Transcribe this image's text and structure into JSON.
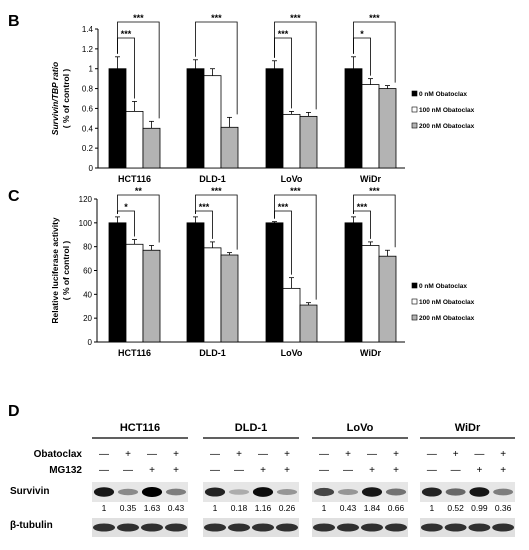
{
  "panels": {
    "B": "B",
    "C": "C",
    "D": "D"
  },
  "legend": [
    "0 nM Obatoclax",
    "100 nM Obatoclax",
    "200 nM Obatoclax"
  ],
  "colors": {
    "s0": "#000000",
    "s1": "#ffffff",
    "s2": "#b3b3b3"
  },
  "chart_data": [
    {
      "type": "bar",
      "panel": "B",
      "categories": [
        "HCT116",
        "DLD-1",
        "LoVo",
        "WiDr"
      ],
      "series": [
        {
          "name": "0 nM Obatoclax",
          "values": [
            1.0,
            1.0,
            1.0,
            1.0
          ],
          "errors": [
            0.12,
            0.09,
            0.08,
            0.12
          ]
        },
        {
          "name": "100 nM Obatoclax",
          "values": [
            0.57,
            0.93,
            0.54,
            0.84
          ],
          "errors": [
            0.1,
            0.07,
            0.03,
            0.06
          ]
        },
        {
          "name": "200 nM Obatoclax",
          "values": [
            0.4,
            0.41,
            0.52,
            0.8
          ],
          "errors": [
            0.07,
            0.1,
            0.04,
            0.03
          ]
        }
      ],
      "ylabel_line1": "Survivin/TBP ratio",
      "ylabel_line2": "( % of control )",
      "ylim": [
        0,
        1.4
      ],
      "yticks": [
        "0",
        "0.2",
        "0.4",
        "0.6",
        "0.8",
        "1",
        "1.2",
        "1.4"
      ],
      "significance": [
        {
          "group": "HCT116",
          "compare": "0 vs 100",
          "label": "***"
        },
        {
          "group": "HCT116",
          "compare": "0 vs 200",
          "label": "***"
        },
        {
          "group": "DLD-1",
          "compare": "0 vs 200",
          "label": "***"
        },
        {
          "group": "LoVo",
          "compare": "0 vs 100",
          "label": "***"
        },
        {
          "group": "LoVo",
          "compare": "0 vs 200",
          "label": "***"
        },
        {
          "group": "WiDr",
          "compare": "0 vs 100",
          "label": "*"
        },
        {
          "group": "WiDr",
          "compare": "0 vs 200",
          "label": "***"
        }
      ]
    },
    {
      "type": "bar",
      "panel": "C",
      "categories": [
        "HCT116",
        "DLD-1",
        "LoVo",
        "WiDr"
      ],
      "series": [
        {
          "name": "0 nM Obatoclax",
          "values": [
            100,
            100,
            100,
            100
          ],
          "errors": [
            5,
            5,
            1,
            5
          ]
        },
        {
          "name": "100 nM Obatoclax",
          "values": [
            82,
            79,
            45,
            81
          ],
          "errors": [
            4,
            5,
            9,
            3
          ]
        },
        {
          "name": "200 nM Obatoclax",
          "values": [
            77,
            73,
            31,
            72
          ],
          "errors": [
            4,
            2,
            2,
            5
          ]
        }
      ],
      "ylabel_line1": "Relative luciferase activity",
      "ylabel_line2": "( % of control )",
      "ylim": [
        0,
        120
      ],
      "yticks": [
        "0",
        "20",
        "40",
        "60",
        "80",
        "100",
        "120"
      ],
      "significance": [
        {
          "group": "HCT116",
          "compare": "0 vs 100",
          "label": "*"
        },
        {
          "group": "HCT116",
          "compare": "0 vs 200",
          "label": "**"
        },
        {
          "group": "DLD-1",
          "compare": "0 vs 100",
          "label": "***"
        },
        {
          "group": "DLD-1",
          "compare": "0 vs 200",
          "label": "***"
        },
        {
          "group": "LoVo",
          "compare": "0 vs 100",
          "label": "***"
        },
        {
          "group": "LoVo",
          "compare": "0 vs 200",
          "label": "***"
        },
        {
          "group": "WiDr",
          "compare": "0 vs 100",
          "label": "***"
        },
        {
          "group": "WiDr",
          "compare": "0 vs 200",
          "label": "***"
        }
      ]
    }
  ],
  "western": {
    "cell_lines": [
      "HCT116",
      "DLD-1",
      "LoVo",
      "WiDr"
    ],
    "row_labels": [
      "Obatoclax",
      "MG132",
      "Survivin",
      "β-tubulin"
    ],
    "obatoclax": [
      "—",
      "+",
      "—",
      "+"
    ],
    "mg132": [
      "—",
      "—",
      "+",
      "+"
    ],
    "survivin_quant": [
      [
        "1",
        "0.35",
        "1.63",
        "0.43"
      ],
      [
        "1",
        "0.18",
        "1.16",
        "0.26"
      ],
      [
        "1",
        "0.43",
        "1.84",
        "0.66"
      ],
      [
        "1",
        "0.52",
        "0.99",
        "0.36"
      ]
    ]
  }
}
